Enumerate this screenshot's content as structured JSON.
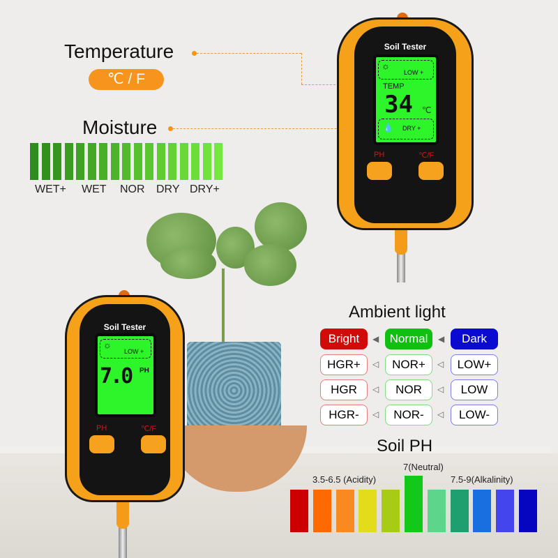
{
  "temperature": {
    "title": "Temperature",
    "unit_pill": "℃ / F"
  },
  "moisture": {
    "title": "Moisture",
    "labels": [
      "WET+",
      "WET",
      "NOR",
      "DRY",
      "DRY+"
    ],
    "bar_colors": [
      "#2e8b1f",
      "#33901f",
      "#379620",
      "#3b9c22",
      "#40a224",
      "#44a826",
      "#49ae28",
      "#4db42a",
      "#52ba2c",
      "#56c02e",
      "#5bc630",
      "#5fcc32",
      "#64d234",
      "#68d836",
      "#6cde38",
      "#70e33a",
      "#74e83c"
    ]
  },
  "device_top": {
    "brand": "Soil Tester",
    "light_status": "LOW +",
    "mode": "TEMP",
    "reading": "34",
    "reading_unit": "℃",
    "moisture_status": "DRY +",
    "btn_left": "PH",
    "btn_right": "℃/F"
  },
  "device_bottom": {
    "brand": "Soil Tester",
    "light_status": "LOW +",
    "reading": "7.0",
    "reading_unit": "PH",
    "btn_left": "PH",
    "btn_right": "℃/F"
  },
  "ambient": {
    "title": "Ambient light",
    "headers": [
      {
        "label": "Bright",
        "color": "#d10a0a"
      },
      {
        "label": "Normal",
        "color": "#10c010"
      },
      {
        "label": "Dark",
        "color": "#0a0ad0"
      }
    ],
    "rows": [
      [
        "HGR+",
        "NOR+",
        "LOW+"
      ],
      [
        "HGR",
        "NOR",
        "LOW"
      ],
      [
        "HGR-",
        "NOR-",
        "LOW-"
      ]
    ]
  },
  "soil_ph": {
    "title": "Soil PH",
    "acid_label": "3.5-6.5 (Acidity)",
    "neutral_label": "7(Neutral)",
    "alkaline_label": "7.5-9(Alkalinity)",
    "colors": [
      "#cc0000",
      "#ff6a00",
      "#f98a22",
      "#e2dc1a",
      "#a8cc16",
      "#12c818",
      "#5dd68c",
      "#1f9e70",
      "#1a6fe0",
      "#4545ee",
      "#0606c0"
    ],
    "neutral_index": 5
  }
}
